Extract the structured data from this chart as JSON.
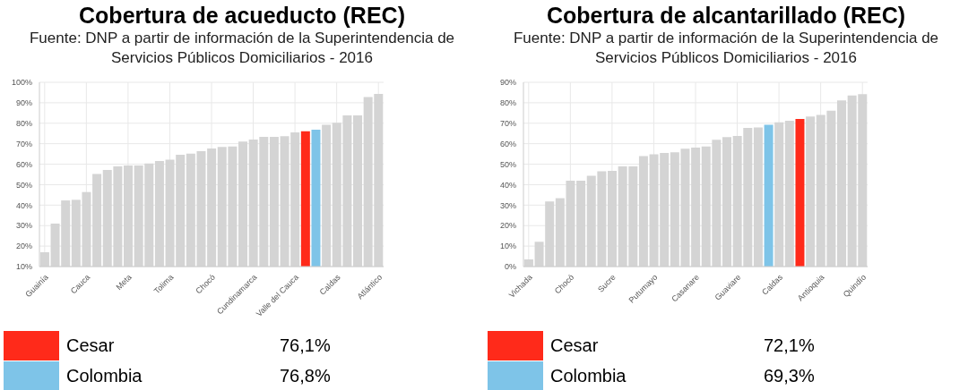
{
  "chart_data": [
    {
      "type": "bar",
      "title": "Cobertura de acueducto (REC)",
      "subtitle": "Fuente: DNP a partir de información de la Superintendencia de Servicios Públicos Domiciliarios - 2016",
      "categories": [
        "Guainía",
        null,
        null,
        null,
        "Cauca",
        null,
        null,
        null,
        "Meta",
        null,
        null,
        null,
        "Tolima",
        null,
        null,
        null,
        "Chocó",
        null,
        null,
        null,
        "Cundinamarca",
        null,
        null,
        null,
        "Valle del Cauca",
        null,
        null,
        null,
        "Caldas",
        null,
        null,
        null,
        "Atlántico"
      ],
      "series": [
        {
          "color": "#d4d4d4",
          "values": [
            17,
            31,
            42.3,
            42.6,
            46.4,
            55.2,
            57.2,
            58.9,
            59.4,
            59.4,
            60.3,
            61.5,
            62.2,
            64.6,
            65.2,
            66.4,
            67.7,
            68.4,
            68.7,
            71.1,
            72,
            73.4,
            73.4,
            73.7,
            75.5,
            null,
            null,
            79.2,
            80.2,
            83.8,
            83.8,
            92.8,
            94.3
          ]
        },
        {
          "name": "Cesar",
          "color": "#ff2a1a",
          "values": [
            null,
            null,
            null,
            null,
            null,
            null,
            null,
            null,
            null,
            null,
            null,
            null,
            null,
            null,
            null,
            null,
            null,
            null,
            null,
            null,
            null,
            null,
            null,
            null,
            null,
            76.1,
            null,
            null,
            null,
            null,
            null,
            null,
            null
          ]
        },
        {
          "name": "Colombia",
          "color": "#7ec4e8",
          "values": [
            null,
            null,
            null,
            null,
            null,
            null,
            null,
            null,
            null,
            null,
            null,
            null,
            null,
            null,
            null,
            null,
            null,
            null,
            null,
            null,
            null,
            null,
            null,
            null,
            null,
            null,
            76.8,
            null,
            null,
            null,
            null,
            null,
            null
          ]
        }
      ],
      "annotations": [
        "76,1%",
        "76,8%"
      ],
      "ylim": [
        10,
        100
      ],
      "yticks": [
        {
          "value": 10,
          "label": "10%"
        },
        {
          "value": 20,
          "label": "20%"
        },
        {
          "value": 30,
          "label": "30%"
        },
        {
          "value": 40,
          "label": "40%"
        },
        {
          "value": 50,
          "label": "50%"
        },
        {
          "value": 60,
          "label": "60%"
        },
        {
          "value": 70,
          "label": "70%"
        },
        {
          "value": 80,
          "label": "80%"
        },
        {
          "value": 90,
          "label": "90%"
        },
        {
          "value": 100,
          "label": "100%"
        }
      ],
      "grid": true,
      "legend": "bottom"
    },
    {
      "type": "bar",
      "title": "Cobertura de alcantarillado (REC)",
      "subtitle": "Fuente: DNP a partir de información de la Superintendencia de Servicios Públicos Domiciliarios - 2016",
      "categories": [
        "Vichada",
        null,
        null,
        null,
        "Chocó",
        null,
        null,
        null,
        "Sucre",
        null,
        null,
        null,
        "Putumayo",
        null,
        null,
        null,
        "Casanare",
        null,
        null,
        null,
        "Guaviare",
        null,
        null,
        null,
        "Caldas",
        null,
        null,
        null,
        "Antioquia",
        null,
        null,
        null,
        "Quindío"
      ],
      "series": [
        {
          "color": "#d4d4d4",
          "values": [
            3.5,
            12.1,
            31.8,
            33.4,
            41.9,
            41.9,
            44.3,
            46.5,
            46.8,
            48.9,
            48.9,
            54,
            54.8,
            55.5,
            55.8,
            57.6,
            58.1,
            58.7,
            61.9,
            63.2,
            63.8,
            67.7,
            67.9,
            null,
            70.5,
            71.2,
            null,
            73.3,
            74.1,
            76.1,
            81.2,
            83.6,
            84.2
          ]
        },
        {
          "name": "Cesar",
          "color": "#ff2a1a",
          "values": [
            null,
            null,
            null,
            null,
            null,
            null,
            null,
            null,
            null,
            null,
            null,
            null,
            null,
            null,
            null,
            null,
            null,
            null,
            null,
            null,
            null,
            null,
            null,
            null,
            null,
            null,
            72.1,
            null,
            null,
            null,
            null,
            null,
            null
          ]
        },
        {
          "name": "Colombia",
          "color": "#7ec4e8",
          "values": [
            null,
            null,
            null,
            null,
            null,
            null,
            null,
            null,
            null,
            null,
            null,
            null,
            null,
            null,
            null,
            null,
            null,
            null,
            null,
            null,
            null,
            null,
            null,
            69.3,
            null,
            null,
            null,
            null,
            null,
            null,
            null,
            null,
            null
          ]
        }
      ],
      "annotations": [
        "72,1%",
        "69,3%"
      ],
      "ylim": [
        0,
        90
      ],
      "yticks": [
        {
          "value": 0,
          "label": "0%"
        },
        {
          "value": 10,
          "label": "10%"
        },
        {
          "value": 20,
          "label": "20%"
        },
        {
          "value": 30,
          "label": "30%"
        },
        {
          "value": 40,
          "label": "40%"
        },
        {
          "value": 50,
          "label": "50%"
        },
        {
          "value": 60,
          "label": "60%"
        },
        {
          "value": 70,
          "label": "70%"
        },
        {
          "value": 80,
          "label": "80%"
        },
        {
          "value": 90,
          "label": "90%"
        }
      ],
      "grid": true,
      "legend": "bottom"
    }
  ]
}
